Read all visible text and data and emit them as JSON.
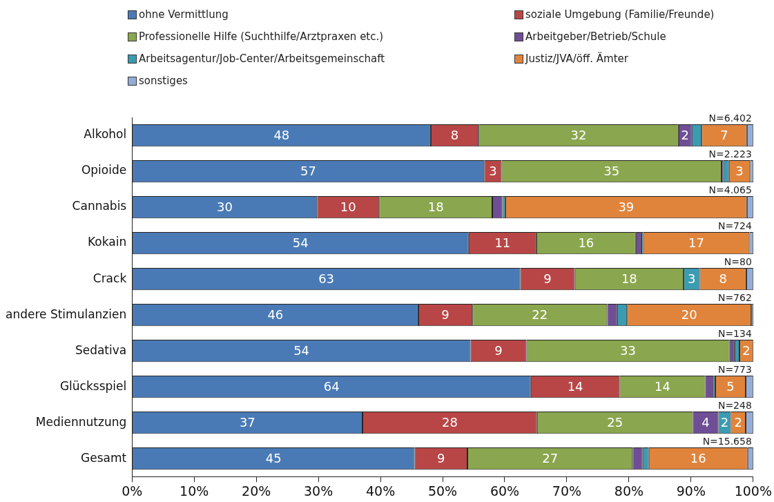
{
  "chart_data": {
    "type": "bar",
    "orientation": "horizontal",
    "stacked": true,
    "categories": [
      "Alkohol",
      "Opioide",
      "Cannabis",
      "Kokain",
      "Crack",
      "andere Stimulanzien",
      "Sedativa",
      "Glücksspiel",
      "Mediennutzung",
      "Gesamt"
    ],
    "series": [
      {
        "name": "ohne Vermittlung",
        "color": "#4a7ab5",
        "values": [
          48.1,
          56.7,
          29.8,
          54.2,
          62.5,
          46.1,
          54.5,
          64.2,
          37.1,
          45.5
        ],
        "value_labels": [
          "48",
          "57",
          "30",
          "54",
          "63",
          "46",
          "54",
          "64",
          "37",
          "45"
        ]
      },
      {
        "name": "soziale Umgebung (Familie/Freunde)",
        "color": "#b84646",
        "values": [
          7.7,
          2.8,
          10.0,
          10.9,
          8.8,
          8.7,
          9.0,
          14.3,
          28.1,
          8.5
        ],
        "value_labels": [
          "8",
          "3",
          "10",
          "11",
          "9",
          "9",
          "9",
          "14",
          "28",
          "9"
        ]
      },
      {
        "name": "Professionelle Hilfe (Suchthilfe/Arztpraxen etc.)",
        "color": "#8aa64e",
        "values": [
          32.2,
          35.4,
          18.2,
          16.0,
          17.5,
          21.7,
          32.7,
          13.8,
          25.1,
          26.6
        ],
        "value_labels": [
          "32",
          "35",
          "18",
          "16",
          "18",
          "22",
          "33",
          "14",
          "25",
          "27"
        ]
      },
      {
        "name": "Arbeitgeber/Betrieb/Schule",
        "color": "#6f4e96",
        "values": [
          2.1,
          0.3,
          1.6,
          0.9,
          0,
          1.6,
          0.8,
          1.3,
          4.1,
          1.6
        ],
        "value_labels": [
          "2",
          null,
          null,
          null,
          null,
          null,
          null,
          null,
          "4",
          null
        ]
      },
      {
        "name": "Arbeitsagentur/Job-Center/Arbeitsgemeinschaft",
        "color": "#3b9bb0",
        "values": [
          1.6,
          0.9,
          0.5,
          0.3,
          2.6,
          1.6,
          0.8,
          0.3,
          2.0,
          1.0
        ],
        "value_labels": [
          null,
          null,
          null,
          null,
          "3",
          null,
          null,
          null,
          "2",
          null
        ]
      },
      {
        "name": "Justiz/JVA/öff. Ämter",
        "color": "#e0843c",
        "values": [
          7.3,
          3.4,
          38.9,
          17.1,
          7.5,
          20.0,
          2.2,
          4.9,
          2.4,
          15.9
        ],
        "value_labels": [
          "7",
          "3",
          "39",
          "17",
          "8",
          "20",
          "2",
          "5",
          "2",
          "16"
        ]
      },
      {
        "name": "sonstiges",
        "color": "#95acd6",
        "values": [
          1.0,
          0.5,
          1.0,
          0.6,
          1.1,
          0.3,
          0,
          1.2,
          1.2,
          0.9
        ]
      }
    ],
    "xlim": [
      0,
      100
    ],
    "xticks": [
      {
        "value": 0,
        "label": "0%"
      },
      {
        "value": 10,
        "label": "10%"
      },
      {
        "value": 20,
        "label": "20%"
      },
      {
        "value": 30,
        "label": "30%"
      },
      {
        "value": 40,
        "label": "40%"
      },
      {
        "value": 50,
        "label": "50%"
      },
      {
        "value": 60,
        "label": "60%"
      },
      {
        "value": 70,
        "label": "70%"
      },
      {
        "value": 80,
        "label": "80%"
      },
      {
        "value": 90,
        "label": "90%"
      },
      {
        "value": 100,
        "label": "100%"
      }
    ],
    "annotations": [
      "N=6.402",
      "N=2.223",
      "N=4.065",
      "N=724",
      "N=80",
      "N=762",
      "N=134",
      "N=773",
      "N=248",
      "N=15.658"
    ],
    "grid": false,
    "legend": "top"
  }
}
